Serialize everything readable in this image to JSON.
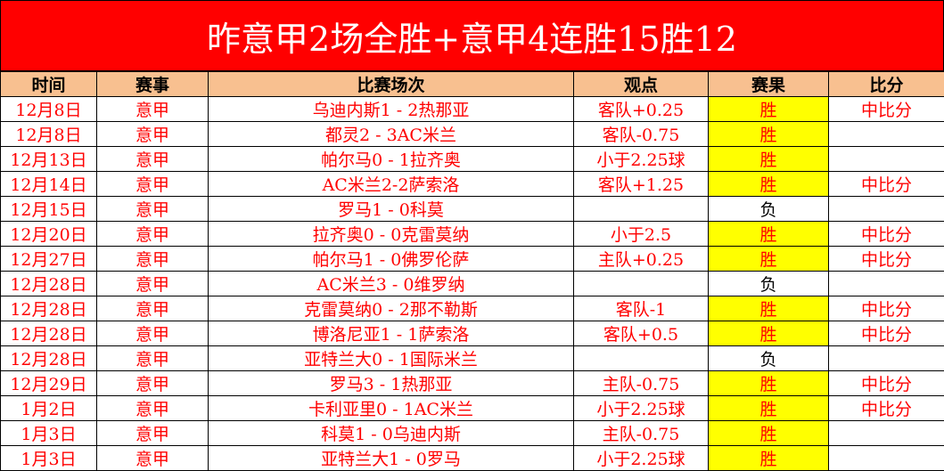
{
  "title": "昨意甲2场全胜+意甲4连胜15胜12",
  "headers": [
    "时间",
    "赛事",
    "比赛场次",
    "观点",
    "赛果",
    "比分"
  ],
  "colors": {
    "title_bg": "#ff0000",
    "header_bg": "#f8c090",
    "win_bg": "#ffff00",
    "text": "#ff0000"
  },
  "rows": [
    {
      "date": "12月8日",
      "league": "意甲",
      "match": "乌迪内斯1 - 2热那亚",
      "pick": "客队+0.25",
      "result": "胜",
      "score": "中比分"
    },
    {
      "date": "12月8日",
      "league": "意甲",
      "match": "都灵2 - 3AC米兰",
      "pick": "客队-0.75",
      "result": "胜",
      "score": ""
    },
    {
      "date": "12月13日",
      "league": "意甲",
      "match": "帕尔马0 - 1拉齐奥",
      "pick": "小于2.25球",
      "result": "胜",
      "score": ""
    },
    {
      "date": "12月14日",
      "league": "意甲",
      "match": "AC米兰2-2萨索洛",
      "pick": "客队+1.25",
      "result": "胜",
      "score": "中比分"
    },
    {
      "date": "12月15日",
      "league": "意甲",
      "match": "罗马1 - 0科莫",
      "pick": "",
      "result": "负",
      "score": ""
    },
    {
      "date": "12月20日",
      "league": "意甲",
      "match": "拉齐奥0 - 0克雷莫纳",
      "pick": "小于2.5",
      "result": "胜",
      "score": "中比分"
    },
    {
      "date": "12月27日",
      "league": "意甲",
      "match": "帕尔马1 - 0佛罗伦萨",
      "pick": "主队+0.25",
      "result": "胜",
      "score": "中比分"
    },
    {
      "date": "12月28日",
      "league": "意甲",
      "match": "AC米兰3 - 0维罗纳",
      "pick": "",
      "result": "负",
      "score": ""
    },
    {
      "date": "12月28日",
      "league": "意甲",
      "match": "克雷莫纳0 - 2那不勒斯",
      "pick": "客队-1",
      "result": "胜",
      "score": "中比分"
    },
    {
      "date": "12月28日",
      "league": "意甲",
      "match": "博洛尼亚1 - 1萨索洛",
      "pick": "客队+0.5",
      "result": "胜",
      "score": "中比分"
    },
    {
      "date": "12月28日",
      "league": "意甲",
      "match": "亚特兰大0 - 1国际米兰",
      "pick": "",
      "result": "负",
      "score": ""
    },
    {
      "date": "12月29日",
      "league": "意甲",
      "match": "罗马3 - 1热那亚",
      "pick": "主队-0.75",
      "result": "胜",
      "score": "中比分"
    },
    {
      "date": "1月2日",
      "league": "意甲",
      "match": "卡利亚里0 - 1AC米兰",
      "pick": "小于2.25球",
      "result": "胜",
      "score": "中比分"
    },
    {
      "date": "1月3日",
      "league": "意甲",
      "match": "科莫1 - 0乌迪内斯",
      "pick": "主队-0.75",
      "result": "胜",
      "score": ""
    },
    {
      "date": "1月3日",
      "league": "意甲",
      "match": "亚特兰大1 - 0罗马",
      "pick": "小于2.25球",
      "result": "胜",
      "score": ""
    }
  ]
}
